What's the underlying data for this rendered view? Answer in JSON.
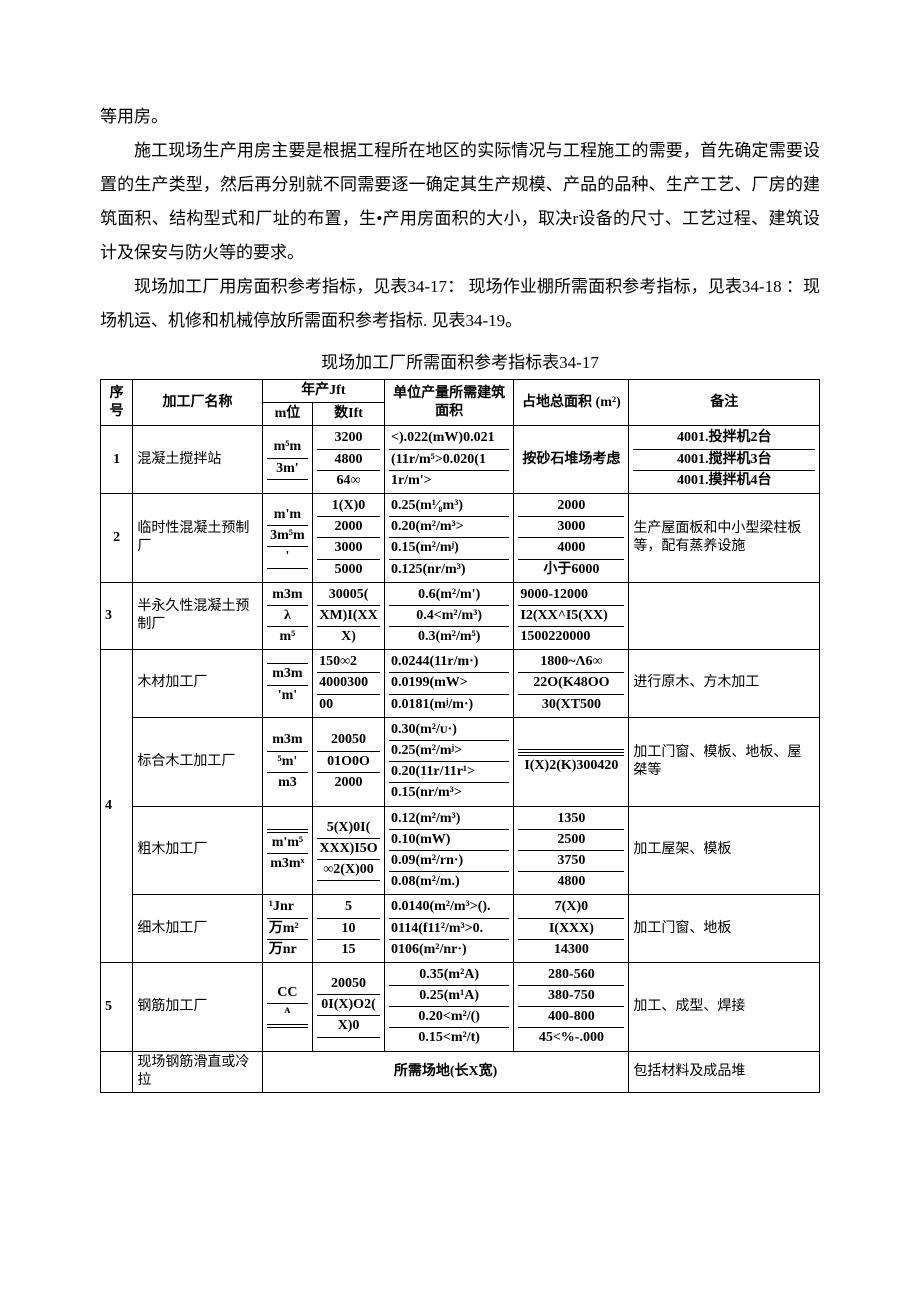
{
  "paragraphs": {
    "p0": "等用房。",
    "p1": "施工现场生产用房主要是根据工程所在地区的实际情况与工程施工的需要，首先确定需要设置的生产类型，然后再分别就不同需要逐一确定其生产规模、产品的品种、生产工艺、厂房的建筑面积、结构型式和厂址的布置，生•产用房面积的大小，取决r设备的尺寸、工艺过程、建筑设计及保安与防火等的要求。",
    "p2": "现场加工厂用房面积参考指标，见表34-17： 现场作业棚所需面积参考指标，见表34-18 ：现场机运、机修和机械停放所需面积参考指标. 见表34-19。"
  },
  "table_title": "现场加工厂所需面积参考指标表34-17",
  "headers": {
    "seq": "序号",
    "name": "加工厂名称",
    "annual": "年产Jft",
    "unit_col": "m位",
    "qty_col": "数Ift",
    "build": "单位产量所需建筑面积",
    "area": "占地总面积 (m²)",
    "note": "备注"
  },
  "rows": [
    {
      "seq": "1",
      "name": "混凝土搅拌站",
      "unit": [
        "m⁵m",
        "3m'",
        ""
      ],
      "qty": [
        "3200",
        "4800",
        "64∞"
      ],
      "build": [
        "<).022(mW)0.021",
        "(11r/m⁵>0.020(1",
        "1r/m'>"
      ],
      "area_single": "按砂石堆场考虑",
      "note": [
        "4001.投拌机2台",
        "4001.搅拌机3台",
        "4001.摸拌机4台"
      ]
    },
    {
      "seq": "2",
      "name": "临时性混凝土预制厂",
      "unit": [
        "m'm",
        "3m⁵m",
        "'",
        ""
      ],
      "qty": [
        "1(X)0",
        "2000",
        "3000",
        "5000"
      ],
      "build": [
        "0.25(m¹⁄₈m³)",
        "0.20(m²/m³>",
        "0.15(m²/mʲ)",
        "0.125(nr/m³)"
      ],
      "area": [
        "2000",
        "3000",
        "4000",
        "小于6000"
      ],
      "note_single": "生产屋面板和中小型梁柱板等，配有蒸养设施"
    },
    {
      "seq": "3",
      "name": "半永久性混凝土预制厂",
      "unit": [
        "m3m",
        "λ",
        "m⁵"
      ],
      "qty": [
        "30005(",
        "XM)I(XX",
        "X)"
      ],
      "build": [
        "0.6(m²/m')",
        "0.4<m²/m³)",
        "0.3(m²/m⁵)"
      ],
      "area": [
        "9000-12000",
        "I2(XX^I5(XX)",
        "1500220000"
      ],
      "note_single": ""
    },
    {
      "seq": "4",
      "sub": [
        {
          "name": "木材加工厂",
          "unit": [
            "",
            "m3m",
            "'m'"
          ],
          "qty": [
            "150∞2",
            "4000300",
            "00"
          ],
          "build": [
            "0.0244(11r/m·)",
            "0.0199(mW>",
            "0.0181(mʲ/m·)"
          ],
          "area": [
            "1800~Λ6∞",
            "22O(K48OO",
            "30(XT500"
          ],
          "note_single": "进行原木、方木加工"
        },
        {
          "name": "标合木工加工厂",
          "unit": [
            "m3m",
            "⁵m'",
            "m3"
          ],
          "qty": [
            "20050",
            "01O0O",
            "2000"
          ],
          "build": [
            "0.30(m²/ᴜ·)",
            "0.25(m²/mʲ>",
            "0.20(11r/11r¹>",
            "0.15(nr/m³>"
          ],
          "area": [
            "",
            "",
            "",
            "I(X)2(K)300420"
          ],
          "note_single": "加工门窗、模板、地板、屋桀等"
        },
        {
          "name": "粗木加工厂",
          "unit": [
            "",
            "",
            "m'm⁵",
            "m3mˣ"
          ],
          "qty": [
            "5(X)0I(",
            "XXX)I5O",
            "∞2(X)00",
            ""
          ],
          "build": [
            "0.12(m²/m³)",
            "0.10(mW)",
            "0.09(m²/rn·)",
            "0.08(m²/m.)"
          ],
          "area": [
            "1350",
            "2500",
            "3750",
            "4800"
          ],
          "note_single": "加工屋架、模板"
        },
        {
          "name": "细木加工厂",
          "unit": [
            "¹Jnr",
            "万m²",
            "万nr"
          ],
          "qty": [
            "5",
            "10",
            "15"
          ],
          "build": [
            "0.0140(m²/m³>().",
            "0114(f11²/m³>0.",
            "0106(m²/nr·)"
          ],
          "area": [
            "7(X)0",
            "I(XXX)",
            "14300"
          ],
          "note_single": "加工门窗、地板"
        }
      ]
    },
    {
      "seq": "5",
      "name": "钢筋加工厂",
      "unit": [
        "CC",
        "ᴬ",
        "",
        ""
      ],
      "qty": [
        "20050",
        "0I(X)O2(",
        "X)0",
        ""
      ],
      "build": [
        "0.35(m²A)",
        "0.25(m¹A)",
        "0.20<m²/()",
        "0.15<m²/t)"
      ],
      "area": [
        "280-560",
        "380-750",
        "400-800",
        "45<%-.000"
      ],
      "note_single": "加工、成型、焊接"
    },
    {
      "seq": "",
      "name": "现场钢筋滑直或冷拉",
      "span_text": "所需场地(长X宽)",
      "note_single": "包括材料及成品堆"
    }
  ]
}
